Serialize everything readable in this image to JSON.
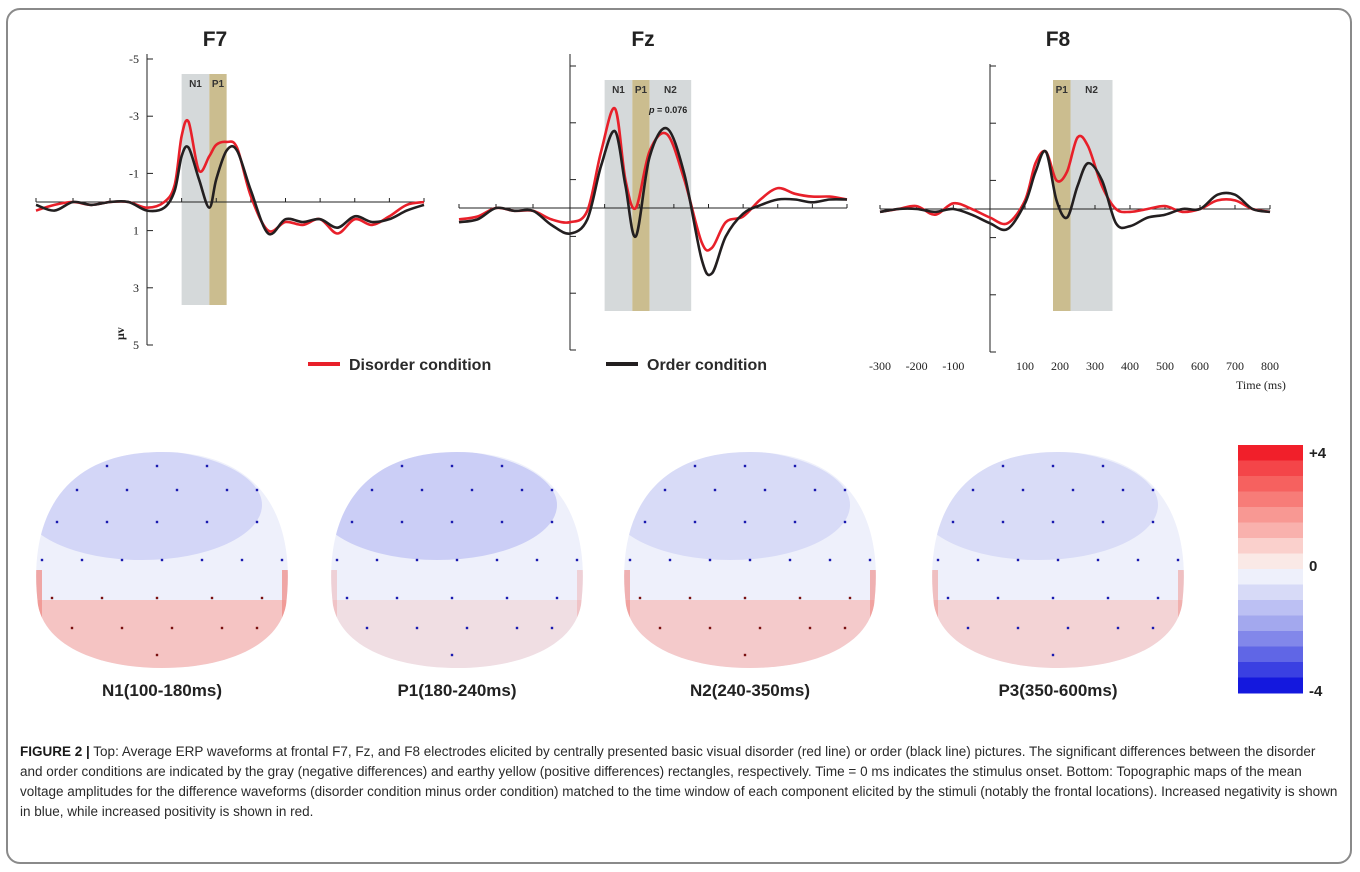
{
  "figure": {
    "legend": {
      "disorder_label": "Disorder condition",
      "order_label": "Order condition",
      "disorder_color": "#e8202a",
      "order_color": "#231f20"
    },
    "time_axis": {
      "ticks": [
        "-300",
        "-200",
        "-100",
        "100",
        "200",
        "300",
        "400",
        "500",
        "600",
        "700",
        "800"
      ],
      "label": "Time (ms)"
    },
    "voltage_axis": {
      "ticks": [
        "-5",
        "-3",
        "-1",
        "1",
        "3",
        "5"
      ],
      "unit_label": "μv"
    },
    "colors": {
      "gray_window": "#d5d9da",
      "yellow_window": "#cbbd8f"
    },
    "annotation": {
      "p_italic": "p",
      "p_value": " = 0.076"
    },
    "topomaps": [
      {
        "label": "N1(100-180ms)"
      },
      {
        "label": "P1(180-240ms)"
      },
      {
        "label": "N2(240-350ms)"
      },
      {
        "label": "P3(350-600ms)"
      }
    ],
    "colorbar": {
      "top_label": "+4",
      "mid_label": "0",
      "bottom_label": "-4",
      "colors": [
        "#f11f2a",
        "#f44549",
        "#f6615f",
        "#f77c78",
        "#f89893",
        "#f9b1ad",
        "#fad0cc",
        "#fae9e6",
        "#eef0fb",
        "#d7daf7",
        "#bcc0f3",
        "#a3a8ee",
        "#8287ea",
        "#6066e6",
        "#3a40e2",
        "#1418de"
      ]
    }
  },
  "chart_data": [
    {
      "type": "line",
      "title": "F7",
      "x_unit": "ms",
      "y_unit": "μV",
      "xlim": [
        -300,
        800
      ],
      "ylim": [
        -5,
        5
      ],
      "y_inverted": true,
      "windows": [
        {
          "label": "N1",
          "from": 100,
          "to": 180,
          "color": "gray"
        },
        {
          "label": "P1",
          "from": 180,
          "to": 230,
          "color": "yellow"
        }
      ],
      "series": [
        {
          "name": "Disorder condition",
          "x": [
            -300,
            -250,
            -200,
            -150,
            -100,
            -50,
            0,
            50,
            80,
            100,
            120,
            150,
            180,
            200,
            230,
            260,
            300,
            350,
            400,
            450,
            500,
            550,
            600,
            650,
            700,
            750,
            800
          ],
          "y": [
            0.3,
            0.1,
            0.0,
            0.1,
            0.0,
            0.0,
            0.2,
            0.0,
            -0.6,
            -2.3,
            -2.8,
            -1.1,
            -1.6,
            -2.0,
            -2.1,
            -1.9,
            -0.2,
            1.0,
            0.7,
            0.8,
            0.6,
            1.1,
            0.6,
            0.8,
            0.5,
            0.1,
            0.0
          ]
        },
        {
          "name": "Order condition",
          "x": [
            -300,
            -250,
            -200,
            -150,
            -100,
            -50,
            0,
            50,
            80,
            100,
            120,
            150,
            180,
            200,
            230,
            260,
            300,
            350,
            400,
            450,
            500,
            550,
            600,
            650,
            700,
            750,
            800
          ],
          "y": [
            0.1,
            0.3,
            0.0,
            0.1,
            0.0,
            0.0,
            0.3,
            0.2,
            -0.4,
            -1.6,
            -1.9,
            -0.8,
            0.2,
            -0.8,
            -1.8,
            -1.8,
            -0.4,
            1.1,
            0.6,
            0.7,
            0.6,
            0.9,
            0.5,
            0.7,
            0.6,
            0.3,
            0.1
          ]
        }
      ]
    },
    {
      "type": "line",
      "title": "Fz",
      "x_unit": "ms",
      "y_unit": "μV",
      "xlim": [
        -300,
        800
      ],
      "ylim": [
        -5,
        5
      ],
      "y_inverted": true,
      "windows": [
        {
          "label": "N1",
          "from": 100,
          "to": 180,
          "color": "gray"
        },
        {
          "label": "P1",
          "from": 180,
          "to": 230,
          "color": "yellow"
        },
        {
          "label": "N2",
          "from": 230,
          "to": 350,
          "color": "gray"
        }
      ],
      "series": [
        {
          "name": "Disorder condition",
          "x": [
            -300,
            -250,
            -200,
            -150,
            -100,
            -50,
            0,
            50,
            90,
            130,
            160,
            190,
            230,
            280,
            330,
            380,
            410,
            450,
            500,
            550,
            600,
            650,
            700,
            750,
            800
          ],
          "y": [
            0.4,
            0.3,
            0.0,
            0.1,
            0.1,
            0.4,
            0.5,
            0.1,
            -2.0,
            -3.5,
            -1.0,
            0.0,
            -2.0,
            -2.6,
            -1.0,
            1.2,
            1.4,
            0.5,
            0.3,
            -0.3,
            -0.7,
            -0.5,
            -0.4,
            -0.4,
            -0.3
          ]
        },
        {
          "name": "Order condition",
          "x": [
            -300,
            -250,
            -200,
            -150,
            -100,
            -50,
            0,
            50,
            90,
            130,
            160,
            190,
            230,
            280,
            330,
            380,
            410,
            450,
            500,
            550,
            600,
            650,
            700,
            750,
            800
          ],
          "y": [
            0.5,
            0.4,
            0.0,
            0.1,
            0.1,
            0.6,
            0.9,
            0.4,
            -1.5,
            -2.7,
            -0.8,
            1.0,
            -1.8,
            -2.8,
            -1.2,
            1.8,
            2.3,
            1.0,
            0.2,
            -0.1,
            -0.3,
            -0.3,
            -0.2,
            -0.3,
            -0.3
          ]
        }
      ]
    },
    {
      "type": "line",
      "title": "F8",
      "x_unit": "ms",
      "y_unit": "μV",
      "xlim": [
        -300,
        800
      ],
      "ylim": [
        -5,
        5
      ],
      "y_inverted": true,
      "xlabel": "Time (ms)",
      "windows": [
        {
          "label": "P1",
          "from": 180,
          "to": 230,
          "color": "yellow"
        },
        {
          "label": "N2",
          "from": 230,
          "to": 350,
          "color": "gray"
        }
      ],
      "series": [
        {
          "name": "Disorder condition",
          "x": [
            -300,
            -250,
            -200,
            -150,
            -100,
            -50,
            0,
            50,
            100,
            130,
            160,
            190,
            220,
            250,
            280,
            320,
            360,
            400,
            450,
            500,
            550,
            600,
            650,
            700,
            750,
            800
          ],
          "y": [
            0.1,
            0.0,
            -0.1,
            0.2,
            -0.2,
            0.0,
            0.3,
            0.5,
            -0.3,
            -1.6,
            -2.0,
            -1.0,
            -1.3,
            -2.5,
            -2.2,
            -0.8,
            0.0,
            0.1,
            0.0,
            -0.1,
            0.1,
            0.0,
            -0.3,
            -0.3,
            0.0,
            0.1
          ]
        },
        {
          "name": "Order condition",
          "x": [
            -300,
            -250,
            -200,
            -150,
            -100,
            -50,
            0,
            50,
            100,
            130,
            160,
            190,
            220,
            250,
            280,
            320,
            360,
            400,
            450,
            500,
            550,
            600,
            650,
            700,
            750,
            800
          ],
          "y": [
            0.1,
            0.0,
            0.0,
            0.1,
            0.0,
            0.2,
            0.5,
            0.7,
            -0.2,
            -1.3,
            -2.0,
            -0.3,
            0.3,
            -0.8,
            -1.6,
            -1.0,
            0.5,
            0.6,
            0.3,
            0.2,
            0.0,
            0.0,
            -0.5,
            -0.5,
            0.0,
            0.1
          ]
        }
      ]
    }
  ],
  "caption": {
    "label": "FIGURE 2 |",
    "text": " Top: Average ERP waveforms at frontal F7, Fz, and F8 electrodes elicited by centrally presented basic visual disorder (red line) or order (black line) pictures. The significant differences between the disorder and order conditions are indicated by the gray (negative differences) and earthy yellow (positive differences) rectangles, respectively. Time = 0 ms indicates the stimulus onset. Bottom: Topographic maps of the mean voltage amplitudes for the difference waveforms (disorder condition minus order condition) matched to the time window of each component elicited by the stimuli (notably the frontal locations). Increased negativity is shown in blue, while increased positivity is shown in red."
  }
}
